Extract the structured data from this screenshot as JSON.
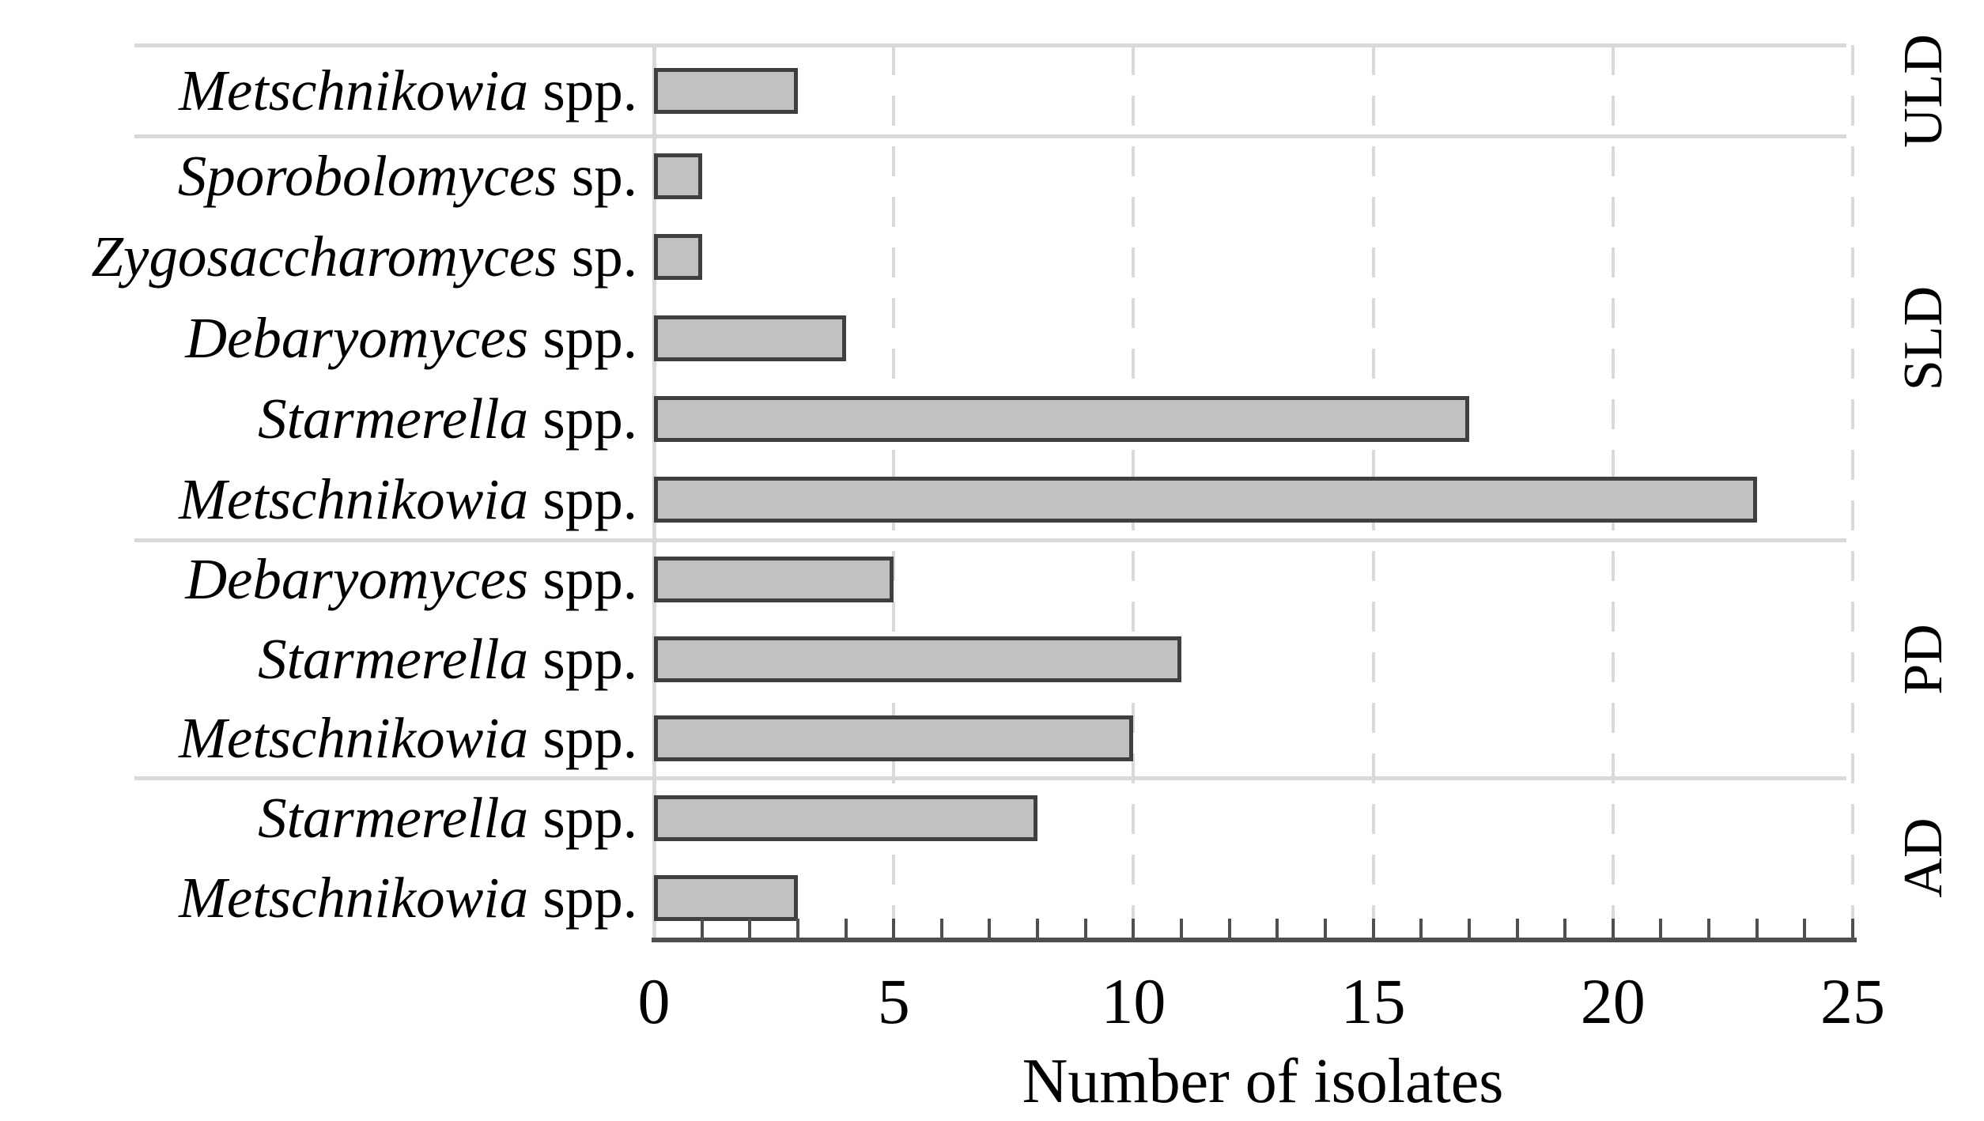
{
  "chart_data": {
    "type": "bar",
    "orientation": "horizontal",
    "xlabel": "Number of isolates",
    "xlim": [
      0,
      25
    ],
    "x_ticks": [
      0,
      5,
      10,
      15,
      20,
      25
    ],
    "minor_tick_step": 1,
    "grid": "dashed vertical gridlines at 5, 10, 15, 20, 25; solid light line at 0",
    "legend": "none",
    "colors": {
      "bar_fill": "#c1c1c1",
      "bar_border": "#3f3f3f",
      "gridline": "#d9d9d9",
      "separator_line": "#d9d9d9",
      "axis_line": "#4f4f4f",
      "text": "#000000"
    },
    "groups": [
      {
        "label": "ULD",
        "rows": [
          {
            "genus": "Metschnikowia",
            "suffix": "spp.",
            "value": 3
          }
        ]
      },
      {
        "label": "SLD",
        "rows": [
          {
            "genus": "Sporobolomyces",
            "suffix": "sp.",
            "value": 1
          },
          {
            "genus": "Zygosaccharomyces",
            "suffix": "sp.",
            "value": 1
          },
          {
            "genus": "Debaryomyces",
            "suffix": "spp.",
            "value": 4
          },
          {
            "genus": "Starmerella",
            "suffix": "spp.",
            "value": 17
          },
          {
            "genus": "Metschnikowia",
            "suffix": "spp.",
            "value": 23
          }
        ]
      },
      {
        "label": "PD",
        "rows": [
          {
            "genus": "Debaryomyces",
            "suffix": "spp.",
            "value": 5
          },
          {
            "genus": "Starmerella",
            "suffix": "spp.",
            "value": 11
          },
          {
            "genus": "Metschnikowia",
            "suffix": "spp.",
            "value": 10
          }
        ]
      },
      {
        "label": "AD",
        "rows": [
          {
            "genus": "Starmerella",
            "suffix": "spp.",
            "value": 8
          },
          {
            "genus": "Metschnikowia",
            "suffix": "spp.",
            "value": 3
          }
        ]
      }
    ]
  }
}
